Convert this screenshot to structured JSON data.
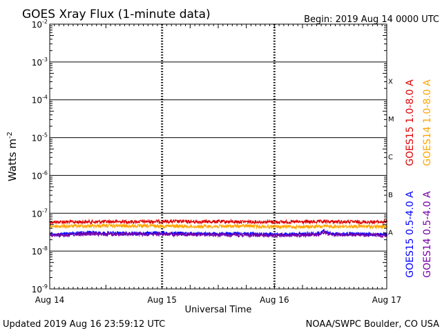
{
  "header": {
    "title": "GOES Xray Flux (1-minute data)",
    "begin": "Begin:  2019 Aug 14 0000 UTC"
  },
  "footer": {
    "updated": "Updated 2019 Aug 16 23:59:12 UTC",
    "credit": "NOAA/SWPC Boulder, CO USA"
  },
  "chart_data": {
    "type": "line",
    "title": "GOES Xray Flux (1-minute data)",
    "xlabel": "Universal Time",
    "ylabel_base": "Watts m",
    "ylabel_exp": "-2",
    "yscale": "log",
    "ylim": [
      1e-09,
      0.01
    ],
    "xlim_days": [
      0,
      3
    ],
    "grid": true,
    "x_ticks": [
      {
        "day": 0,
        "label": "Aug 14"
      },
      {
        "day": 1,
        "label": "Aug 15"
      },
      {
        "day": 2,
        "label": "Aug 16"
      },
      {
        "day": 3,
        "label": "Aug 17"
      }
    ],
    "y_ticks": [
      {
        "exp": -2,
        "base": "10",
        "sup": "-2"
      },
      {
        "exp": -3,
        "base": "10",
        "sup": "-3"
      },
      {
        "exp": -4,
        "base": "10",
        "sup": "-4"
      },
      {
        "exp": -5,
        "base": "10",
        "sup": "-5"
      },
      {
        "exp": -6,
        "base": "10",
        "sup": "-6"
      },
      {
        "exp": -7,
        "base": "10",
        "sup": "-7"
      },
      {
        "exp": -8,
        "base": "10",
        "sup": "-8"
      },
      {
        "exp": -9,
        "base": "10",
        "sup": "-9"
      }
    ],
    "flare_classes": [
      {
        "label": "X",
        "exp": -4
      },
      {
        "label": "M",
        "exp": -5
      },
      {
        "label": "C",
        "exp": -6
      },
      {
        "label": "B",
        "exp": -7
      },
      {
        "label": "A",
        "exp": -8
      }
    ],
    "series": [
      {
        "name": "GOES15 1.0-8.0 A",
        "color": "#dd0000",
        "points": [
          [
            0,
            5.9e-08
          ],
          [
            0.25,
            5.9e-08
          ],
          [
            0.5,
            6e-08
          ],
          [
            0.75,
            6e-08
          ],
          [
            1.0,
            6.1e-08
          ],
          [
            1.25,
            6e-08
          ],
          [
            1.5,
            6e-08
          ],
          [
            1.75,
            6e-08
          ],
          [
            2.0,
            5.9e-08
          ],
          [
            2.25,
            5.9e-08
          ],
          [
            2.5,
            6e-08
          ],
          [
            2.75,
            5.9e-08
          ],
          [
            3.0,
            5.9e-08
          ]
        ]
      },
      {
        "name": "GOES14 1.0-8.0 A",
        "color": "#ffa500",
        "points": [
          [
            0,
            4.5e-08
          ],
          [
            0.25,
            4.6e-08
          ],
          [
            0.5,
            4.7e-08
          ],
          [
            0.75,
            4.6e-08
          ],
          [
            1.0,
            4.6e-08
          ],
          [
            1.25,
            4.5e-08
          ],
          [
            1.5,
            4.5e-08
          ],
          [
            1.75,
            4.6e-08
          ],
          [
            2.0,
            4.4e-08
          ],
          [
            2.25,
            4.4e-08
          ],
          [
            2.5,
            4.5e-08
          ],
          [
            2.75,
            4.5e-08
          ],
          [
            3.0,
            4.4e-08
          ]
        ]
      },
      {
        "name": "GOES15 0.5-4.0 A",
        "color": "#0000ff",
        "points": [
          [
            0,
            2.8e-08
          ],
          [
            0.15,
            2.8e-08
          ],
          [
            0.3,
            3.1e-08
          ],
          [
            0.5,
            3e-08
          ],
          [
            0.75,
            2.9e-08
          ],
          [
            1.0,
            3e-08
          ],
          [
            1.25,
            2.9e-08
          ],
          [
            1.5,
            2.9e-08
          ],
          [
            1.75,
            2.9e-08
          ],
          [
            2.0,
            2.8e-08
          ],
          [
            2.25,
            2.8e-08
          ],
          [
            2.4,
            2.9e-08
          ],
          [
            2.44,
            3.5e-08
          ],
          [
            2.5,
            2.9e-08
          ],
          [
            2.75,
            2.8e-08
          ],
          [
            3.0,
            2.8e-08
          ]
        ]
      },
      {
        "name": "GOES14 0.5-4.0 A",
        "color": "#7700aa",
        "points": [
          [
            0,
            2.6e-08
          ],
          [
            0.3,
            2.8e-08
          ],
          [
            0.6,
            2.8e-08
          ],
          [
            1.0,
            2.8e-08
          ],
          [
            1.5,
            2.7e-08
          ],
          [
            2.0,
            2.6e-08
          ],
          [
            2.4,
            2.7e-08
          ],
          [
            2.44,
            3.2e-08
          ],
          [
            2.5,
            2.7e-08
          ],
          [
            3.0,
            2.6e-08
          ]
        ]
      }
    ]
  }
}
